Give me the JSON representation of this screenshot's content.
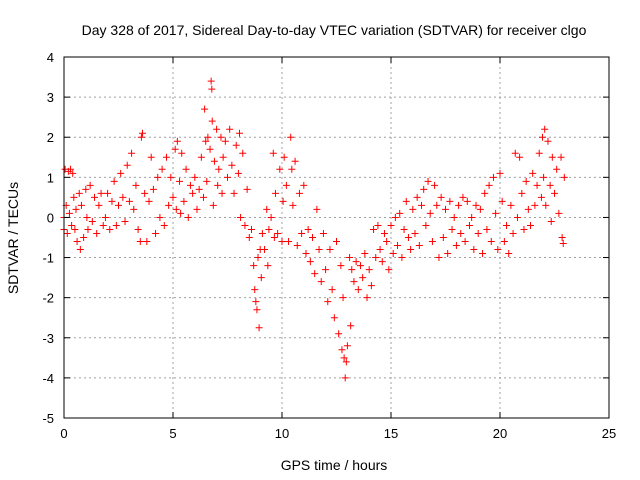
{
  "chart_data": {
    "type": "scatter",
    "title": "Day 328 of 2017, Sidereal Day-to-day VTEC variation (SDTVAR) for receiver clgo",
    "xlabel": "GPS time / hours",
    "ylabel": "SDTVAR / TECUs",
    "xlim": [
      0,
      25
    ],
    "ylim": [
      -5,
      4
    ],
    "xticks": [
      0,
      5,
      10,
      15,
      20,
      25
    ],
    "xtick_labels": [
      "0",
      "5",
      "10",
      "15",
      "20",
      "25"
    ],
    "yticks": [
      -5,
      -4,
      -3,
      -2,
      -1,
      0,
      1,
      2,
      3,
      4
    ],
    "ytick_labels": [
      "-5",
      "-4",
      "-3",
      "-2",
      "-1",
      "0",
      "1",
      "2",
      "3",
      "4"
    ],
    "grid": true,
    "marker": "+",
    "color": "#ff0000",
    "series": [
      {
        "name": "SDTVAR",
        "points": [
          [
            0.0,
            -0.3
          ],
          [
            0.0,
            0.0
          ],
          [
            0.05,
            1.2
          ],
          [
            0.1,
            0.3
          ],
          [
            0.15,
            -0.4
          ],
          [
            0.2,
            1.15
          ],
          [
            0.25,
            0.1
          ],
          [
            0.3,
            1.2
          ],
          [
            0.35,
            -0.2
          ],
          [
            0.4,
            1.1
          ],
          [
            0.45,
            0.5
          ],
          [
            0.5,
            -0.3
          ],
          [
            0.55,
            0.2
          ],
          [
            0.6,
            -0.6
          ],
          [
            0.7,
            0.6
          ],
          [
            0.75,
            -0.8
          ],
          [
            0.8,
            0.3
          ],
          [
            0.9,
            -0.5
          ],
          [
            1.0,
            0.7
          ],
          [
            1.05,
            0.0
          ],
          [
            1.1,
            -0.3
          ],
          [
            1.2,
            0.8
          ],
          [
            1.3,
            -0.1
          ],
          [
            1.4,
            0.5
          ],
          [
            1.5,
            -0.4
          ],
          [
            1.6,
            0.3
          ],
          [
            1.7,
            0.6
          ],
          [
            1.8,
            -0.2
          ],
          [
            1.9,
            0.0
          ],
          [
            2.0,
            0.6
          ],
          [
            2.1,
            -0.3
          ],
          [
            2.2,
            0.4
          ],
          [
            2.3,
            0.9
          ],
          [
            2.4,
            -0.2
          ],
          [
            2.5,
            0.3
          ],
          [
            2.6,
            1.1
          ],
          [
            2.7,
            0.5
          ],
          [
            2.8,
            -0.1
          ],
          [
            2.9,
            1.3
          ],
          [
            3.0,
            0.4
          ],
          [
            3.1,
            1.6
          ],
          [
            3.2,
            0.2
          ],
          [
            3.3,
            0.8
          ],
          [
            3.4,
            -0.3
          ],
          [
            3.5,
            -0.6
          ],
          [
            3.55,
            2.0
          ],
          [
            3.6,
            2.1
          ],
          [
            3.7,
            0.6
          ],
          [
            3.8,
            -0.6
          ],
          [
            3.9,
            0.4
          ],
          [
            4.0,
            1.5
          ],
          [
            4.1,
            0.7
          ],
          [
            4.2,
            -0.4
          ],
          [
            4.3,
            1.0
          ],
          [
            4.4,
            0.0
          ],
          [
            4.5,
            1.2
          ],
          [
            4.6,
            -0.2
          ],
          [
            4.7,
            1.5
          ],
          [
            4.8,
            0.3
          ],
          [
            4.9,
            1.0
          ],
          [
            5.0,
            0.5
          ],
          [
            5.1,
            1.7
          ],
          [
            5.15,
            0.2
          ],
          [
            5.2,
            1.9
          ],
          [
            5.3,
            0.9
          ],
          [
            5.35,
            0.1
          ],
          [
            5.4,
            1.6
          ],
          [
            5.5,
            0.4
          ],
          [
            5.6,
            1.2
          ],
          [
            5.7,
            0.0
          ],
          [
            5.8,
            0.8
          ],
          [
            5.9,
            0.6
          ],
          [
            6.0,
            1.0
          ],
          [
            6.1,
            0.2
          ],
          [
            6.2,
            0.7
          ],
          [
            6.3,
            1.5
          ],
          [
            6.4,
            0.5
          ],
          [
            6.45,
            2.7
          ],
          [
            6.5,
            1.9
          ],
          [
            6.55,
            0.9
          ],
          [
            6.6,
            2.0
          ],
          [
            6.7,
            1.7
          ],
          [
            6.75,
            3.4
          ],
          [
            6.78,
            3.2
          ],
          [
            6.8,
            2.4
          ],
          [
            6.85,
            0.3
          ],
          [
            6.9,
            1.4
          ],
          [
            7.0,
            2.2
          ],
          [
            7.05,
            0.8
          ],
          [
            7.1,
            1.2
          ],
          [
            7.2,
            2.0
          ],
          [
            7.25,
            0.6
          ],
          [
            7.3,
            1.5
          ],
          [
            7.4,
            1.9
          ],
          [
            7.5,
            1.0
          ],
          [
            7.6,
            2.2
          ],
          [
            7.7,
            1.3
          ],
          [
            7.8,
            0.6
          ],
          [
            7.9,
            1.8
          ],
          [
            8.0,
            1.1
          ],
          [
            8.05,
            2.1
          ],
          [
            8.1,
            0.0
          ],
          [
            8.2,
            1.6
          ],
          [
            8.3,
            -0.2
          ],
          [
            8.4,
            0.7
          ],
          [
            8.5,
            -0.5
          ],
          [
            8.6,
            -0.3
          ],
          [
            8.7,
            -1.2
          ],
          [
            8.75,
            -1.8
          ],
          [
            8.8,
            -2.1
          ],
          [
            8.85,
            -2.3
          ],
          [
            8.9,
            -1.0
          ],
          [
            8.95,
            -2.75
          ],
          [
            9.0,
            -0.8
          ],
          [
            9.05,
            -1.5
          ],
          [
            9.1,
            -0.4
          ],
          [
            9.2,
            -0.8
          ],
          [
            9.3,
            0.2
          ],
          [
            9.35,
            -1.2
          ],
          [
            9.4,
            -0.3
          ],
          [
            9.5,
            0.0
          ],
          [
            9.6,
            1.6
          ],
          [
            9.65,
            -0.5
          ],
          [
            9.7,
            0.6
          ],
          [
            9.8,
            -0.4
          ],
          [
            9.9,
            1.2
          ],
          [
            10.0,
            -0.6
          ],
          [
            10.05,
            0.4
          ],
          [
            10.1,
            1.5
          ],
          [
            10.2,
            0.8
          ],
          [
            10.3,
            -0.6
          ],
          [
            10.4,
            2.0
          ],
          [
            10.45,
            1.2
          ],
          [
            10.5,
            0.3
          ],
          [
            10.6,
            1.4
          ],
          [
            10.7,
            -0.7
          ],
          [
            10.8,
            0.6
          ],
          [
            10.9,
            -0.4
          ],
          [
            11.0,
            0.8
          ],
          [
            11.1,
            -0.9
          ],
          [
            11.2,
            -0.3
          ],
          [
            11.3,
            -1.1
          ],
          [
            11.4,
            -0.5
          ],
          [
            11.5,
            -1.4
          ],
          [
            11.6,
            0.2
          ],
          [
            11.7,
            -0.8
          ],
          [
            11.8,
            -1.6
          ],
          [
            11.9,
            -0.4
          ],
          [
            12.0,
            -1.3
          ],
          [
            12.1,
            -2.1
          ],
          [
            12.2,
            -0.8
          ],
          [
            12.3,
            -1.8
          ],
          [
            12.4,
            -2.5
          ],
          [
            12.5,
            -0.6
          ],
          [
            12.6,
            -2.9
          ],
          [
            12.7,
            -1.2
          ],
          [
            12.75,
            -3.3
          ],
          [
            12.8,
            -2.0
          ],
          [
            12.85,
            -3.5
          ],
          [
            12.9,
            -4.0
          ],
          [
            12.95,
            -3.6
          ],
          [
            13.0,
            -3.2
          ],
          [
            13.1,
            -1.0
          ],
          [
            13.15,
            -2.7
          ],
          [
            13.2,
            -1.3
          ],
          [
            13.3,
            -1.6
          ],
          [
            13.4,
            -1.1
          ],
          [
            13.5,
            -1.8
          ],
          [
            13.6,
            -1.2
          ],
          [
            13.7,
            -1.5
          ],
          [
            13.8,
            -0.9
          ],
          [
            13.9,
            -2.0
          ],
          [
            14.0,
            -1.3
          ],
          [
            14.1,
            -1.7
          ],
          [
            14.2,
            -0.3
          ],
          [
            14.3,
            -1.0
          ],
          [
            14.4,
            -0.2
          ],
          [
            14.5,
            -0.8
          ],
          [
            14.6,
            -1.1
          ],
          [
            14.7,
            -0.4
          ],
          [
            14.8,
            -0.6
          ],
          [
            14.9,
            -1.3
          ],
          [
            15.0,
            -0.2
          ],
          [
            15.1,
            -0.9
          ],
          [
            15.2,
            0.0
          ],
          [
            15.3,
            -0.7
          ],
          [
            15.4,
            0.1
          ],
          [
            15.5,
            -1.0
          ],
          [
            15.6,
            -0.3
          ],
          [
            15.7,
            0.4
          ],
          [
            15.8,
            -0.5
          ],
          [
            15.9,
            -0.8
          ],
          [
            16.0,
            0.2
          ],
          [
            16.1,
            -0.4
          ],
          [
            16.2,
            0.5
          ],
          [
            16.3,
            -0.7
          ],
          [
            16.4,
            0.3
          ],
          [
            16.5,
            0.7
          ],
          [
            16.6,
            -0.2
          ],
          [
            16.7,
            0.9
          ],
          [
            16.8,
            0.1
          ],
          [
            16.9,
            -0.6
          ],
          [
            17.0,
            0.8
          ],
          [
            17.1,
            0.3
          ],
          [
            17.2,
            -1.0
          ],
          [
            17.3,
            0.5
          ],
          [
            17.4,
            -0.5
          ],
          [
            17.5,
            0.2
          ],
          [
            17.6,
            -0.9
          ],
          [
            17.7,
            0.4
          ],
          [
            17.8,
            -0.3
          ],
          [
            17.9,
            0.0
          ],
          [
            18.0,
            -0.7
          ],
          [
            18.1,
            0.3
          ],
          [
            18.2,
            -0.4
          ],
          [
            18.3,
            0.5
          ],
          [
            18.4,
            -0.6
          ],
          [
            18.5,
            0.4
          ],
          [
            18.6,
            -0.2
          ],
          [
            18.7,
            0.0
          ],
          [
            18.8,
            -0.8
          ],
          [
            18.9,
            0.3
          ],
          [
            19.0,
            -0.4
          ],
          [
            19.1,
            0.2
          ],
          [
            19.2,
            -0.9
          ],
          [
            19.3,
            0.6
          ],
          [
            19.4,
            -0.3
          ],
          [
            19.5,
            0.8
          ],
          [
            19.6,
            -0.6
          ],
          [
            19.7,
            1.0
          ],
          [
            19.8,
            0.1
          ],
          [
            19.9,
            -0.8
          ],
          [
            20.0,
            1.1
          ],
          [
            20.1,
            0.4
          ],
          [
            20.2,
            -0.6
          ],
          [
            20.3,
            -0.2
          ],
          [
            20.4,
            -0.9
          ],
          [
            20.5,
            0.3
          ],
          [
            20.6,
            -0.4
          ],
          [
            20.7,
            1.6
          ],
          [
            20.8,
            0.0
          ],
          [
            20.9,
            1.5
          ],
          [
            21.0,
            0.6
          ],
          [
            21.1,
            -0.3
          ],
          [
            21.2,
            0.9
          ],
          [
            21.3,
            0.2
          ],
          [
            21.4,
            -0.2
          ],
          [
            21.5,
            1.1
          ],
          [
            21.6,
            0.3
          ],
          [
            21.7,
            0.8
          ],
          [
            21.8,
            1.6
          ],
          [
            21.9,
            0.5
          ],
          [
            21.95,
            2.0
          ],
          [
            22.0,
            1.0
          ],
          [
            22.05,
            2.2
          ],
          [
            22.1,
            0.3
          ],
          [
            22.2,
            1.9
          ],
          [
            22.3,
            0.8
          ],
          [
            22.35,
            -0.1
          ],
          [
            22.4,
            1.5
          ],
          [
            22.5,
            0.6
          ],
          [
            22.6,
            1.2
          ],
          [
            22.7,
            0.1
          ],
          [
            22.8,
            1.5
          ],
          [
            22.85,
            -0.5
          ],
          [
            22.9,
            -0.65
          ],
          [
            22.95,
            1.0
          ]
        ]
      }
    ]
  }
}
